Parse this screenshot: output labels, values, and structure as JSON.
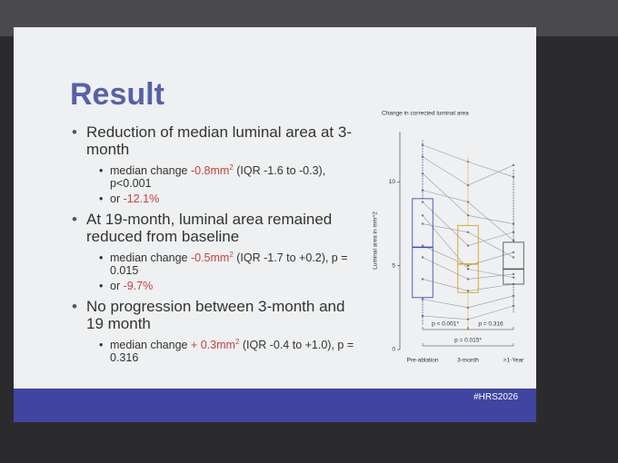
{
  "title": "Result",
  "bullets": [
    {
      "text": "Reduction of median luminal area at 3-month",
      "sub": [
        {
          "prefix": "median change ",
          "highlight": "-0.8mm",
          "sup": "2",
          "suffix": " (IQR -1.6 to -0.3), p<0.001"
        },
        {
          "prefix": "or ",
          "highlight": "-12.1%"
        }
      ]
    },
    {
      "text": "At 19-month, luminal area remained reduced from baseline",
      "sub": [
        {
          "prefix": "median change ",
          "highlight": "-0.5mm",
          "sup": "2",
          "suffix": " (IQR -1.7 to +0.2), p = 0.015"
        },
        {
          "prefix": "or ",
          "highlight": "-9.7%"
        }
      ]
    },
    {
      "text": "No progression between 3-month and 19 month",
      "sub": [
        {
          "prefix": "median change ",
          "highlight": "+ 0.3mm",
          "sup": "2",
          "suffix": " (IQR -0.4 to +1.0), p = 0.316"
        }
      ]
    }
  ],
  "chart": {
    "type": "box",
    "title": "Change in corrected luminal area",
    "y_label": "Luminal area in mm^2",
    "categories": [
      "Pre-ablation",
      "3-month",
      ">1-Year"
    ],
    "ylim": [
      0,
      13
    ],
    "yticks": [
      0,
      5,
      10
    ],
    "boxes": [
      {
        "min": 1.5,
        "q1": 3.1,
        "median": 6.1,
        "q3": 9.0,
        "max": 12.5,
        "color": "#3b4fb5"
      },
      {
        "min": 1.2,
        "q1": 3.4,
        "median": 5.1,
        "q3": 7.4,
        "max": 11.5,
        "color": "#d9a020"
      },
      {
        "min": 2.2,
        "q1": 3.9,
        "median": 4.8,
        "q3": 6.4,
        "max": 10.8,
        "color": "#555555"
      }
    ],
    "patients": [
      [
        12.2,
        11.2,
        10.3
      ],
      [
        11.5,
        9.8,
        11.0
      ],
      [
        10.5,
        8.0,
        7.5
      ],
      [
        9.5,
        8.8,
        6.5
      ],
      [
        8.8,
        6.2,
        7.0
      ],
      [
        7.5,
        7.0,
        5.5
      ],
      [
        6.2,
        5.0,
        5.8
      ],
      [
        5.5,
        4.2,
        4.5
      ],
      [
        4.2,
        3.5,
        3.9
      ],
      [
        3.0,
        2.5,
        3.2
      ],
      [
        2.0,
        1.8,
        2.6
      ],
      [
        8.0,
        4.8,
        4.3
      ]
    ],
    "line_color": "#9a9a9a",
    "comparisons": [
      "p < 0.001*",
      "p = 0.316",
      "p = 0.015*"
    ]
  },
  "footer": "#HRS2026"
}
